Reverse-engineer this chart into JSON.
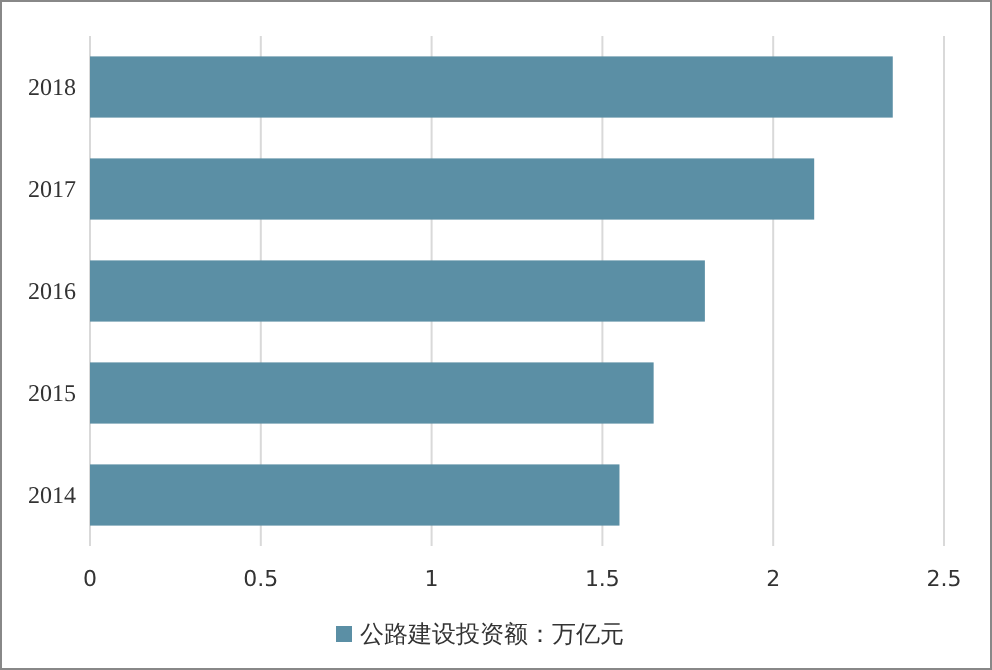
{
  "chart_data": {
    "type": "bar",
    "orientation": "horizontal",
    "categories": [
      "2018",
      "2017",
      "2016",
      "2015",
      "2014"
    ],
    "series": [
      {
        "name": "公路建设投资额：万亿元",
        "color": "#5b8fa5",
        "values": [
          2.35,
          2.12,
          1.8,
          1.65,
          1.55
        ]
      }
    ],
    "xlim": [
      0,
      2.5
    ],
    "xticks": [
      0,
      0.5,
      1,
      1.5,
      2,
      2.5
    ],
    "grid": "x",
    "legend": "bottom"
  }
}
